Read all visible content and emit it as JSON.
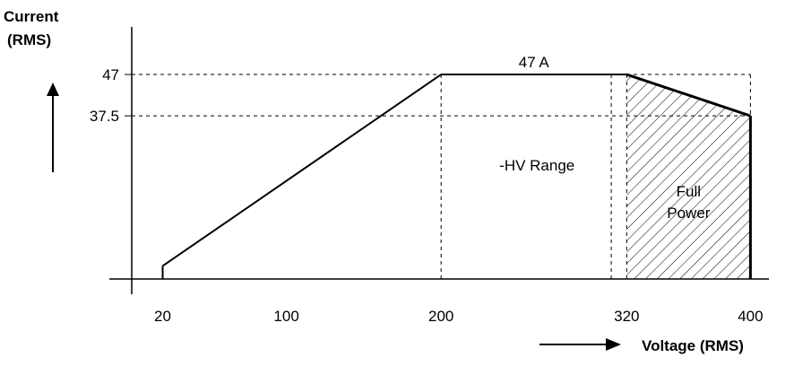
{
  "chart_data": {
    "type": "line",
    "xlabel": "Voltage (RMS)",
    "ylabel_lines": [
      "Current",
      "(RMS)"
    ],
    "x_ticks": [
      20,
      100,
      200,
      320,
      400
    ],
    "y_ticks": [
      37.5,
      47
    ],
    "y_tick_labels": [
      "37.5",
      "47"
    ],
    "xlim": [
      0,
      400
    ],
    "ylim": [
      0,
      47
    ],
    "series": [
      {
        "x": [
          20,
          20,
          200,
          320,
          400,
          400
        ],
        "y": [
          0,
          3,
          47,
          47,
          37.5,
          0
        ]
      }
    ],
    "guides": {
      "vertical_x": [
        200,
        310,
        320,
        400
      ],
      "horizontal_y": [
        47,
        37.5
      ]
    },
    "annotations": [
      {
        "text": "47 A",
        "x": 260,
        "y": 47
      },
      {
        "text": "-HV Range",
        "x": 262,
        "y": 25
      },
      {
        "text": "Full",
        "x": 360,
        "y": 19
      },
      {
        "text": "Power",
        "x": 360,
        "y": 14
      }
    ],
    "hatched_region": {
      "label": "Full Power",
      "x_from": 320,
      "x_to": 400
    },
    "grid": false,
    "legend": "none"
  }
}
